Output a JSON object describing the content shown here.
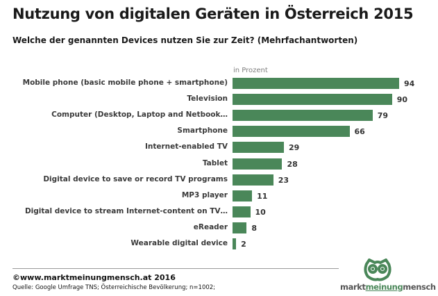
{
  "header": {
    "title": "Nutzung von digitalen Geräten in Österreich 2015",
    "subtitle": "Welche der genannten Devices nutzen Sie zur Zeit? (Mehrfachantworten)"
  },
  "chart_data": {
    "type": "bar",
    "orientation": "horizontal",
    "unit_label": "in Prozent",
    "categories": [
      "Mobile phone (basic mobile phone + smartphone)",
      "Television",
      "Computer (Desktop, Laptop and Netbook…",
      "Smartphone",
      "Internet-enabled TV",
      "Tablet",
      "Digital device to save or record TV programs",
      "MP3 player",
      "Digital device to stream Internet-content on TV…",
      "eReader",
      "Wearable digital device"
    ],
    "values": [
      94,
      90,
      79,
      66,
      29,
      28,
      23,
      11,
      10,
      8,
      2
    ],
    "xlim": [
      0,
      100
    ],
    "grid": false,
    "bar_color": "#4a8759"
  },
  "footer": {
    "copyright": "©www.marktmeinungmensch.at  2016",
    "source": "Quelle: Google Umfrage TNS; Österreichische Bevölkerung; n=1002;"
  },
  "logo": {
    "text_parts": [
      "markt",
      "meinung",
      "mensch"
    ],
    "colors": {
      "grey": "#555555",
      "green": "#4a8759"
    }
  }
}
